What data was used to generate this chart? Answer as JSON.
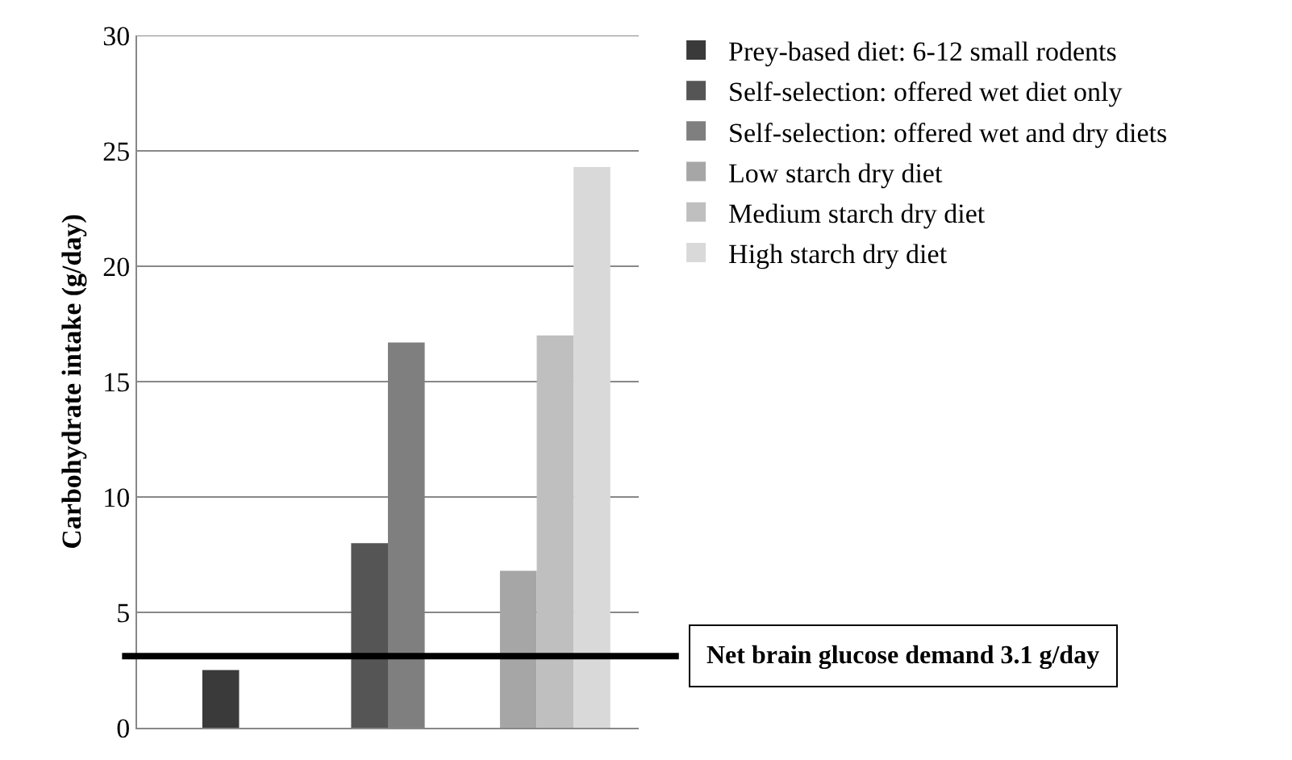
{
  "chart_data": {
    "type": "bar",
    "ylabel": "Carbohydrate intake (g/day)",
    "categories": [
      null,
      null,
      null
    ],
    "series": [
      {
        "name": "Prey-based diet: 6-12 small rodents",
        "color": "#3a3a3a",
        "values": [
          2.5,
          null,
          null
        ]
      },
      {
        "name": "Self-selection: offered wet diet only",
        "color": "#555555",
        "values": [
          null,
          8.0,
          null
        ]
      },
      {
        "name": "Self-selection: offered wet and dry diets",
        "color": "#7f7f7f",
        "values": [
          null,
          16.7,
          null
        ]
      },
      {
        "name": "Low starch dry diet",
        "color": "#a6a6a6",
        "values": [
          null,
          null,
          6.8
        ]
      },
      {
        "name": "Medium starch dry diet",
        "color": "#bfbfbf",
        "values": [
          null,
          null,
          17.0
        ]
      },
      {
        "name": "High starch dry diet",
        "color": "#d9d9d9",
        "values": [
          null,
          null,
          24.3
        ]
      }
    ],
    "ylim": [
      0,
      30
    ],
    "yticks": [
      0,
      5,
      10,
      15,
      20,
      25,
      30
    ],
    "grid": "y",
    "legend": "right",
    "ref_lines": [
      {
        "axis": "y",
        "value": 3.1,
        "label": "Net brain glucose demand 3.1 g/day",
        "color": "#000000"
      }
    ]
  }
}
